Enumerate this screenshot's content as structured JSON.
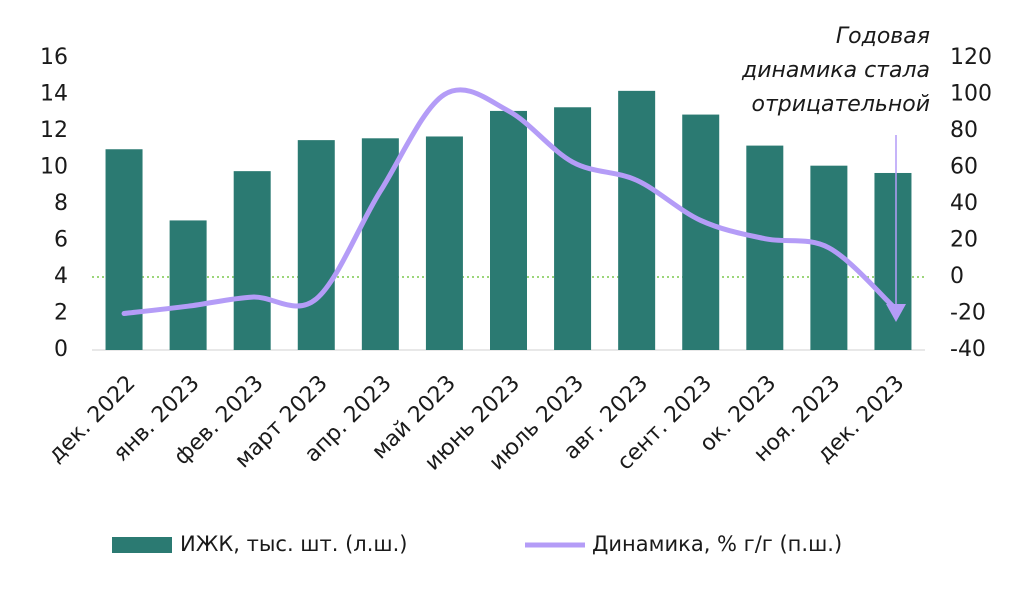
{
  "chart_data": {
    "type": "bar-line",
    "categories": [
      "дек. 2022",
      "янв. 2023",
      "фев. 2023",
      "март 2023",
      "апр. 2023",
      "май 2023",
      "июнь 2023",
      "июль 2023",
      "авг. 2023",
      "сент. 2023",
      "ок. 2023",
      "ноя. 2023",
      "дек. 2023"
    ],
    "series": [
      {
        "name": "ИЖК, тыс. шт. (л.ш.)",
        "type": "bar",
        "color": "#2b7a72",
        "values": [
          11.0,
          7.1,
          9.8,
          11.5,
          11.6,
          11.7,
          13.1,
          13.3,
          14.2,
          12.9,
          11.2,
          10.1,
          9.7
        ]
      },
      {
        "name": "Динамика, % г/г (п.ш.)",
        "type": "line",
        "axis": "y2",
        "color": "#b49cf7",
        "values": [
          -20,
          -16,
          -11,
          -12,
          47,
          100,
          91,
          63,
          53,
          31,
          21,
          16,
          -16
        ]
      }
    ],
    "ylim": [
      0,
      16
    ],
    "yticks": [
      0,
      2,
      4,
      6,
      8,
      10,
      12,
      14,
      16
    ],
    "y2lim": [
      -40,
      120
    ],
    "y2ticks": [
      -40,
      -20,
      0,
      20,
      40,
      60,
      80,
      100,
      120
    ],
    "reference_line_y2": 0,
    "reference_color": "#7cc84e",
    "annotation": [
      "Годовая",
      "динамика стала",
      "отрицательной"
    ],
    "legend": "bottom"
  }
}
